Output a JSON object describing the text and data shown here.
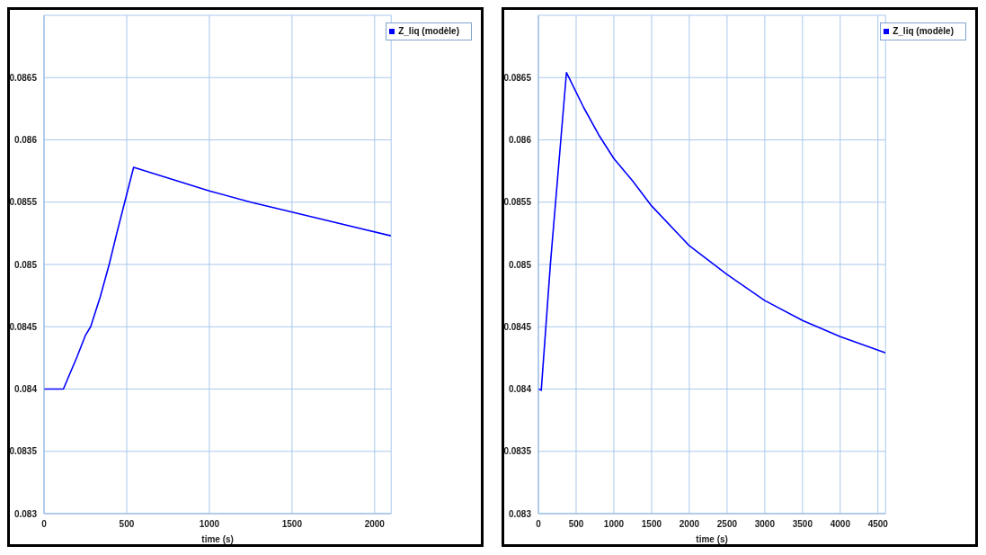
{
  "chart_data": [
    {
      "type": "line",
      "xlabel": "time (s)",
      "x": [
        0,
        117,
        200,
        250,
        282,
        340,
        394,
        440,
        488,
        542,
        1000,
        1250,
        1500,
        2098
      ],
      "series": [
        {
          "name": "Z_liq (modèle)",
          "color": "#0000ff",
          "values": [
            0.084,
            0.084,
            0.08426,
            0.08443,
            0.0845,
            0.08474,
            0.085,
            0.08525,
            0.0855,
            0.08578,
            0.08559,
            0.0855,
            0.08542,
            0.08523
          ]
        }
      ],
      "xlim": [
        0,
        2100
      ],
      "xticks": [
        0,
        500,
        1000,
        1500,
        2000
      ],
      "ylim": [
        0.083,
        0.087
      ],
      "yticks": [
        0.083,
        0.0835,
        0.084,
        0.0845,
        0.085,
        0.0855,
        0.086,
        0.0865
      ],
      "grid": true,
      "legend": "top right",
      "marker": "none",
      "line_style": "solid"
    },
    {
      "type": "line",
      "xlabel": "time (s)",
      "x": [
        0,
        38,
        160,
        372,
        600,
        800,
        1000,
        1250,
        1500,
        2000,
        2500,
        3000,
        3500,
        4000,
        4600
      ],
      "series": [
        {
          "name": "Z_liq (modèle)",
          "color": "#0000ff",
          "values": [
            0.084,
            0.08399,
            0.08501,
            0.08654,
            0.08626,
            0.08604,
            0.08585,
            0.08567,
            0.08547,
            0.08515,
            0.08492,
            0.08471,
            0.08455,
            0.08442,
            0.08429
          ]
        }
      ],
      "xlim": [
        0,
        4600
      ],
      "xticks": [
        0,
        500,
        1000,
        1500,
        2000,
        2500,
        3000,
        3500,
        4000,
        4500
      ],
      "ylim": [
        0.083,
        0.087
      ],
      "yticks": [
        0.083,
        0.0835,
        0.084,
        0.0845,
        0.085,
        0.0855,
        0.086,
        0.0865
      ],
      "grid": true,
      "legend": "top right",
      "marker": "none",
      "line_style": "solid"
    }
  ]
}
